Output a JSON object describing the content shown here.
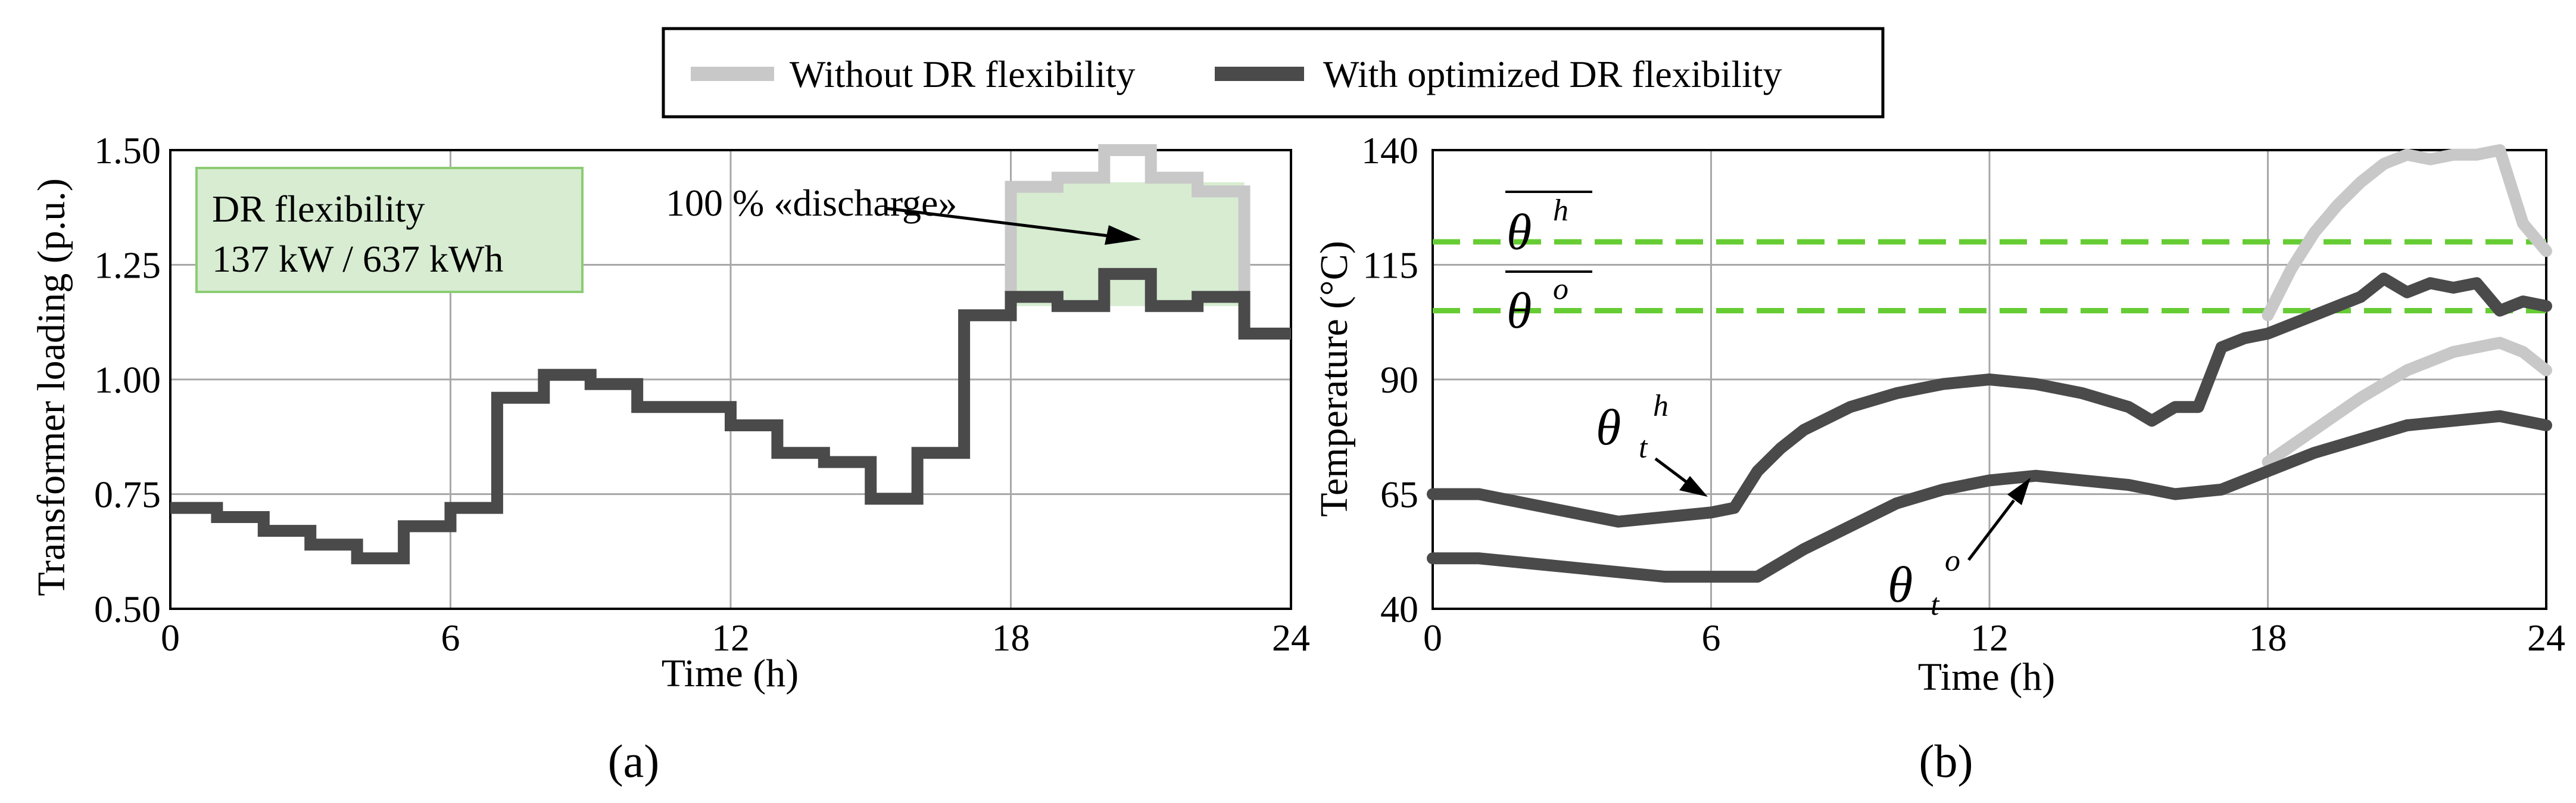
{
  "legend": [
    {
      "label": "Without DR flexibility",
      "color": "#c8c8c8"
    },
    {
      "label": "With optimized DR flexibility",
      "color": "#4a4a4a"
    }
  ],
  "chart_data": [
    {
      "type": "line",
      "panel_label": "(a)",
      "xlabel": "Time (h)",
      "ylabel": "Transformer loading (p.u.)",
      "xlim": [
        0,
        24
      ],
      "ylim": [
        0.5,
        1.5
      ],
      "xticks": [
        "0",
        "6",
        "12",
        "18",
        "24"
      ],
      "yticks": [
        "0.50",
        "0.75",
        "1.00",
        "1.25",
        "1.50"
      ],
      "grid": true,
      "step": true,
      "series": [
        {
          "name": "Without DR flexibility",
          "color": "#c8c8c8",
          "x": [
            18,
            19,
            20,
            21,
            22,
            23
          ],
          "values": [
            1.42,
            1.44,
            1.5,
            1.44,
            1.41,
            1.41
          ]
        },
        {
          "name": "With optimized DR flexibility",
          "color": "#4a4a4a",
          "x": [
            0,
            1,
            2,
            3,
            4,
            5,
            6,
            7,
            8,
            9,
            10,
            11,
            12,
            13,
            14,
            15,
            16,
            17,
            18,
            19,
            20,
            21,
            22,
            23,
            24
          ],
          "values": [
            0.72,
            0.7,
            0.67,
            0.64,
            0.61,
            0.68,
            0.72,
            0.96,
            1.01,
            0.99,
            0.94,
            0.94,
            0.9,
            0.84,
            0.82,
            0.74,
            0.84,
            1.14,
            1.18,
            1.16,
            1.23,
            1.16,
            1.18,
            1.1,
            1.1
          ]
        }
      ],
      "annotations": {
        "box_title": "DR flexibility",
        "box_value": "137 kW / 637 kWh",
        "discharge_label": "100 % «discharge»"
      }
    },
    {
      "type": "line",
      "panel_label": "(b)",
      "xlabel": "Time (h)",
      "ylabel": "Temperature (°C)",
      "xlim": [
        0,
        24
      ],
      "ylim": [
        40,
        140
      ],
      "xticks": [
        "0",
        "6",
        "12",
        "18",
        "24"
      ],
      "yticks": [
        "40",
        "65",
        "90",
        "115",
        "140"
      ],
      "grid": true,
      "limits": {
        "theta_h_max": 120,
        "theta_o_max": 105,
        "color": "#66cc33"
      },
      "series": [
        {
          "name": "Hot-spot temperature without DR flexibility",
          "color": "#c8c8c8",
          "x": [
            18,
            18.5,
            19,
            19.5,
            20,
            20.5,
            21,
            21.5,
            22,
            22.5,
            23,
            23.5,
            24
          ],
          "values": [
            104,
            114,
            122,
            128,
            133,
            137,
            139,
            138,
            139,
            139,
            140,
            124,
            118
          ]
        },
        {
          "name": "Top-oil temperature without DR flexibility",
          "color": "#c8c8c8",
          "x": [
            18,
            19,
            20,
            21,
            22,
            22.5,
            23,
            23.5,
            24
          ],
          "values": [
            72,
            79,
            86,
            92,
            96,
            97,
            98,
            96,
            92
          ]
        },
        {
          "name": "Hot-spot temperature with optimized DR flexibility",
          "color": "#4a4a4a",
          "x": [
            0,
            1,
            2,
            3,
            4,
            5,
            6,
            6.5,
            7,
            7.5,
            8,
            9,
            10,
            11,
            12,
            13,
            14,
            15,
            15.5,
            16,
            16.5,
            17,
            17.5,
            18,
            19,
            20,
            20.5,
            21,
            21.5,
            22,
            22.5,
            23,
            23.5,
            24
          ],
          "values": [
            65,
            65,
            63,
            61,
            59,
            60,
            61,
            62,
            70,
            75,
            79,
            84,
            87,
            89,
            90,
            89,
            87,
            84,
            81,
            84,
            84,
            97,
            99,
            100,
            104,
            108,
            112,
            109,
            111,
            110,
            111,
            105,
            107,
            106
          ]
        },
        {
          "name": "Top-oil temperature with optimized DR flexibility",
          "color": "#4a4a4a",
          "x": [
            0,
            1,
            2,
            3,
            4,
            5,
            6,
            7,
            8,
            9,
            10,
            11,
            12,
            13,
            14,
            15,
            16,
            17,
            18,
            19,
            20,
            21,
            22,
            23,
            24
          ],
          "values": [
            51,
            51,
            50,
            49,
            48,
            47,
            47,
            47,
            53,
            58,
            63,
            66,
            68,
            69,
            68,
            67,
            65,
            66,
            70,
            74,
            77,
            80,
            81,
            82,
            80
          ]
        }
      ],
      "annotations": {
        "theta": "θ",
        "sup_h": "h",
        "sup_o": "o",
        "sub_t": "t"
      }
    }
  ]
}
